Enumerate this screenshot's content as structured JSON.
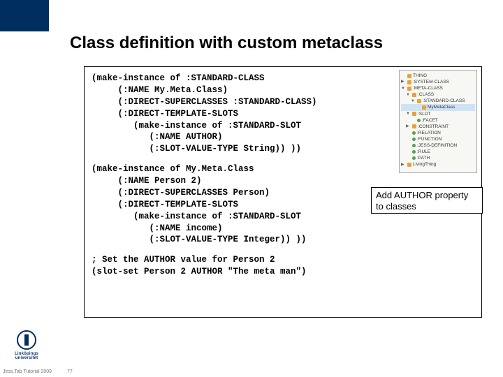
{
  "title": "Class definition with custom metaclass",
  "code_block1": "(make-instance of :STANDARD-CLASS\n     (:NAME My.Meta.Class)\n     (:DIRECT-SUPERCLASSES :STANDARD-CLASS)\n     (:DIRECT-TEMPLATE-SLOTS\n        (make-instance of :STANDARD-SLOT\n           (:NAME AUTHOR)\n           (:SLOT-VALUE-TYPE String)) ))",
  "code_block2": "(make-instance of My.Meta.Class\n     (:NAME Person 2)\n     (:DIRECT-SUPERCLASSES Person)\n     (:DIRECT-TEMPLATE-SLOTS\n        (make-instance of :STANDARD-SLOT\n           (:NAME income)\n           (:SLOT-VALUE-TYPE Integer)) ))",
  "code_block3": "; Set the AUTHOR value for Person 2\n(slot-set Person 2 AUTHOR \"The meta man\")",
  "callout": "Add AUTHOR property to classes",
  "tree": {
    "items": [
      {
        "indent": 0,
        "arrow": "",
        "label": "THING"
      },
      {
        "indent": 0,
        "arrow": "▶",
        "label": ":SYSTEM-CLASS"
      },
      {
        "indent": 0,
        "arrow": "▼",
        "label": ":META-CLASS"
      },
      {
        "indent": 1,
        "arrow": "▼",
        "label": ":CLASS"
      },
      {
        "indent": 2,
        "arrow": "▼",
        "label": ":STANDARD-CLASS"
      },
      {
        "indent": 3,
        "arrow": "",
        "label": "MyMetaClass",
        "hl": true
      },
      {
        "indent": 1,
        "arrow": "▼",
        "label": ":SLOT"
      },
      {
        "indent": 2,
        "arrow": "",
        "label": ":FACET",
        "dot": true
      },
      {
        "indent": 1,
        "arrow": "▶",
        "label": ":CONSTRAINT"
      },
      {
        "indent": 1,
        "arrow": "",
        "label": ":RELATION",
        "dot": true
      },
      {
        "indent": 1,
        "arrow": "",
        "label": ":FUNCTION",
        "dot": true
      },
      {
        "indent": 1,
        "arrow": "",
        "label": ":JESS-DEFINITION",
        "dot": true
      },
      {
        "indent": 1,
        "arrow": "",
        "label": ":RULE",
        "dot": true
      },
      {
        "indent": 1,
        "arrow": "",
        "label": ":PATH",
        "dot": true
      },
      {
        "indent": 0,
        "arrow": "▶",
        "label": "LivingThing"
      }
    ]
  },
  "university": "Linköpings universitet",
  "footer_left": "Jess.Tab Tutorial 2009",
  "footer_page": "77",
  "colors": {
    "brand": "#002e5f",
    "callout_border": "#000000"
  }
}
